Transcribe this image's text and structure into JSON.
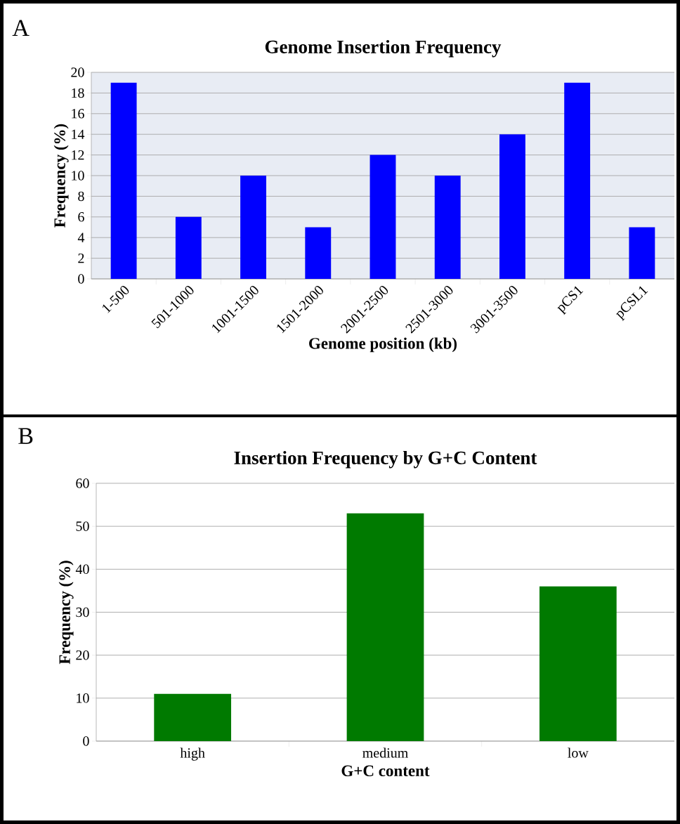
{
  "chart_data": [
    {
      "type": "bar",
      "title": "Genome Insertion Frequency",
      "xlabel": "Genome position (kb)",
      "ylabel": "Frequency (%)",
      "annotations": [
        "A"
      ],
      "categories": [
        "1-500",
        "501-1000",
        "1001-1500",
        "1501-2000",
        "2001-2500",
        "2501-3000",
        "3001-3500",
        "pCS1",
        "pCSL1"
      ],
      "values": [
        19,
        6,
        10,
        5,
        12,
        10,
        14,
        19,
        5
      ],
      "color": "#0000ff",
      "ylim": [
        0,
        20
      ],
      "yticks": [
        0,
        2,
        4,
        6,
        8,
        10,
        12,
        14,
        16,
        18,
        20
      ],
      "grid": "y"
    },
    {
      "type": "bar",
      "title": "Insertion Frequency by G+C Content",
      "xlabel": "G+C content",
      "ylabel": "Frequency (%)",
      "annotations": [
        "B"
      ],
      "categories": [
        "high",
        "medium",
        "low"
      ],
      "values": [
        11,
        53,
        36
      ],
      "color": "#007a00",
      "ylim": [
        0,
        60
      ],
      "yticks": [
        0,
        10,
        20,
        30,
        40,
        50,
        60
      ],
      "grid": "y"
    }
  ]
}
